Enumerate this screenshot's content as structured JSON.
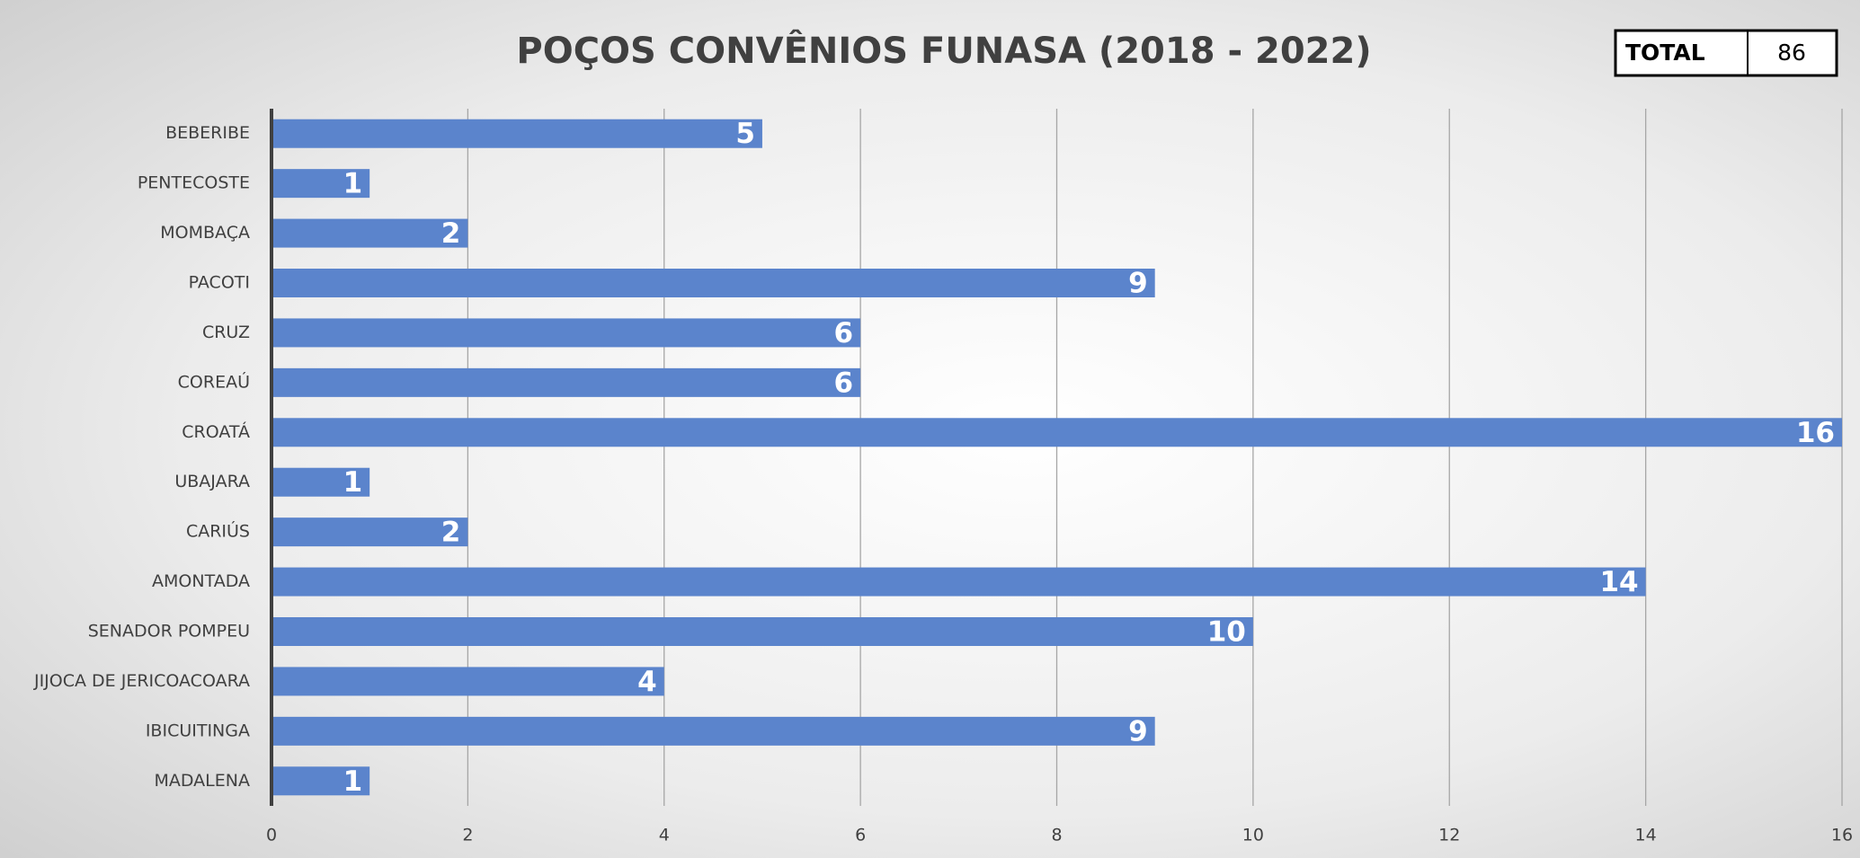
{
  "chart_data": {
    "type": "barh",
    "title": "POÇOS CONVÊNIOS FUNASA (2018 - 2022)",
    "total_label": "TOTAL",
    "total_value": 86,
    "categories": [
      "BEBERIBE",
      "PENTECOSTE",
      "MOMBAÇA",
      "PACOTI",
      "CRUZ",
      "COREAÚ",
      "CROATÁ",
      "UBAJARA",
      "CARIÚS",
      "AMONTADA",
      "SENADOR POMPEU",
      "JIJOCA DE JERICOACOARA",
      "IBICUITINGA",
      "MADALENA"
    ],
    "values": [
      5,
      1,
      2,
      9,
      6,
      6,
      16,
      1,
      2,
      14,
      10,
      4,
      9,
      1
    ],
    "color": "#5b84cc",
    "xlim": [
      0,
      16
    ],
    "xticks": [
      0,
      2,
      4,
      6,
      8,
      10,
      12,
      14,
      16
    ],
    "grid": true
  }
}
